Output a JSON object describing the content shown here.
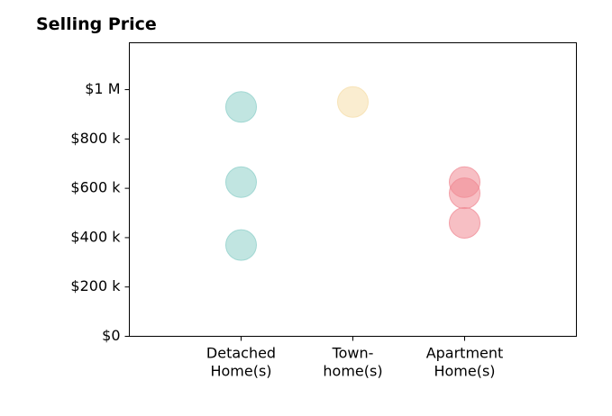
{
  "chart_data": {
    "type": "scatter",
    "title": "Selling Price",
    "xlabel": "",
    "ylabel": "",
    "categories": [
      [
        "Detached",
        "Home(s)"
      ],
      [
        "Town-",
        "home(s)"
      ],
      [
        "Apartment",
        "Home(s)"
      ]
    ],
    "xlim": [
      0,
      4
    ],
    "ylim": [
      0,
      1190000
    ],
    "yticks": [
      {
        "value": 0,
        "label": "$0"
      },
      {
        "value": 200000,
        "label": "$200 k"
      },
      {
        "value": 400000,
        "label": "$400 k"
      },
      {
        "value": 600000,
        "label": "$600 k"
      },
      {
        "value": 800000,
        "label": "$800 k"
      },
      {
        "value": 1000000,
        "label": "$1 M"
      }
    ],
    "grid": false,
    "legend": "none",
    "series": [
      {
        "category_index": 0,
        "values": [
          930000,
          625000,
          370000
        ],
        "color": "#8ecfc9"
      },
      {
        "category_index": 1,
        "values": [
          950000
        ],
        "color": "#f5deaa"
      },
      {
        "category_index": 2,
        "values": [
          625000,
          580000,
          460000
        ],
        "color": "#f08a94"
      }
    ]
  }
}
